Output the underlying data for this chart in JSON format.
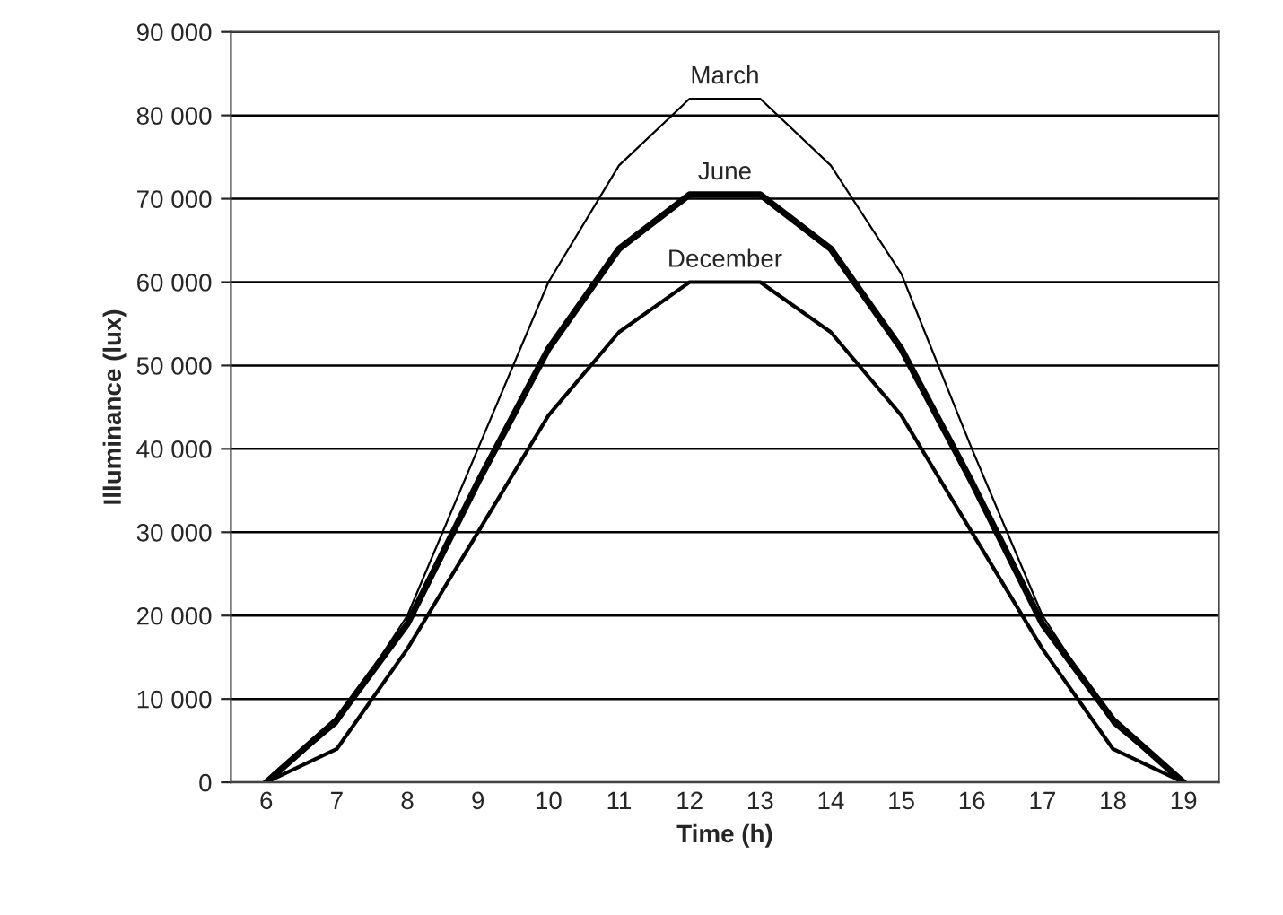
{
  "chart_data": {
    "type": "line",
    "xlabel": "Time (h)",
    "ylabel": "Illuminance (lux)",
    "categories": [
      "6",
      "7",
      "8",
      "9",
      "10",
      "11",
      "12",
      "13",
      "14",
      "15",
      "16",
      "17",
      "18",
      "19"
    ],
    "series": [
      {
        "name": "March",
        "color": "#000000",
        "values": [
          0,
          7000,
          20000,
          40000,
          60000,
          74000,
          82000,
          82000,
          74000,
          61000,
          40000,
          20000,
          7000,
          0
        ]
      },
      {
        "name": "June",
        "color": "#000000",
        "values": [
          0,
          7500,
          19000,
          36000,
          52000,
          64000,
          70500,
          70500,
          64000,
          52000,
          36000,
          19000,
          7500,
          0
        ]
      },
      {
        "name": "December",
        "color": "#000000",
        "values": [
          0,
          4000,
          16000,
          30000,
          44000,
          54000,
          60000,
          60000,
          54000,
          44000,
          30000,
          16000,
          4000,
          0
        ]
      }
    ],
    "ylim": [
      0,
      90000
    ],
    "yticks": [
      {
        "value": 0,
        "label": "0"
      },
      {
        "value": 10000,
        "label": "10 000"
      },
      {
        "value": 20000,
        "label": "20 000"
      },
      {
        "value": 30000,
        "label": "30 000"
      },
      {
        "value": 40000,
        "label": "40 000"
      },
      {
        "value": 50000,
        "label": "50 000"
      },
      {
        "value": 60000,
        "label": "60 000"
      },
      {
        "value": 70000,
        "label": "70 000"
      },
      {
        "value": 80000,
        "label": "80 000"
      },
      {
        "value": 90000,
        "label": "90 000"
      }
    ],
    "grid": "y",
    "legend": false,
    "marker": "none",
    "line_style": "solid"
  }
}
